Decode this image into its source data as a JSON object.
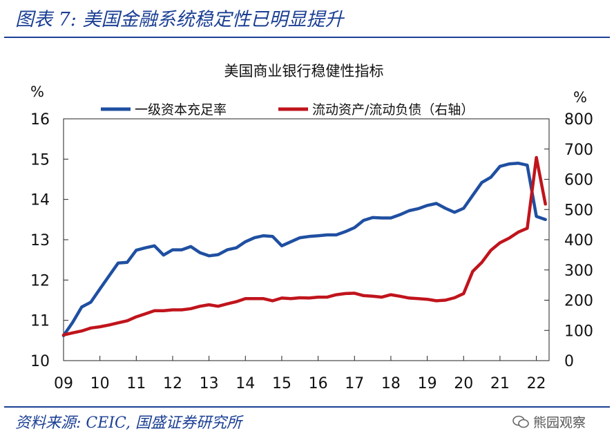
{
  "figure_title": "图表 7:  美国金融系统稳定性已明显提升",
  "source_text": "资料来源:  CEIC,  国盛证券研究所",
  "watermark_text": "熊园观察",
  "colors": {
    "accent": "#1b3f94",
    "series_blue": "#1f4fa1",
    "series_red": "#c0141c"
  },
  "chart_data": {
    "type": "line",
    "title": "美国商业银行稳健性指标",
    "y_left_unit": "%",
    "y_right_unit": "%",
    "ylim_left": [
      10,
      16
    ],
    "ylim_right": [
      0,
      800
    ],
    "xlim": [
      2009,
      2022.35
    ],
    "yticks_left": [
      10,
      11,
      12,
      13,
      14,
      15,
      16
    ],
    "yticks_right": [
      0,
      100,
      200,
      300,
      400,
      500,
      600,
      700,
      800
    ],
    "xticks": [
      {
        "label": "09",
        "value": 2009
      },
      {
        "label": "10",
        "value": 2010
      },
      {
        "label": "11",
        "value": 2011
      },
      {
        "label": "12",
        "value": 2012
      },
      {
        "label": "13",
        "value": 2013
      },
      {
        "label": "14",
        "value": 2014
      },
      {
        "label": "15",
        "value": 2015
      },
      {
        "label": "16",
        "value": 2016
      },
      {
        "label": "17",
        "value": 2017
      },
      {
        "label": "18",
        "value": 2018
      },
      {
        "label": "19",
        "value": 2019
      },
      {
        "label": "20",
        "value": 2020
      },
      {
        "label": "21",
        "value": 2021
      },
      {
        "label": "22",
        "value": 2022
      }
    ],
    "legend_position": "top",
    "grid": false,
    "series": [
      {
        "name": "一级资本充足率",
        "axis": "left",
        "color": "#1f4fa1",
        "x": [
          2009.0,
          2009.25,
          2009.5,
          2009.75,
          2010.0,
          2010.25,
          2010.5,
          2010.75,
          2011.0,
          2011.25,
          2011.5,
          2011.75,
          2012.0,
          2012.25,
          2012.5,
          2012.75,
          2013.0,
          2013.25,
          2013.5,
          2013.75,
          2014.0,
          2014.25,
          2014.5,
          2014.75,
          2015.0,
          2015.25,
          2015.5,
          2015.75,
          2016.0,
          2016.25,
          2016.5,
          2016.75,
          2017.0,
          2017.25,
          2017.5,
          2017.75,
          2018.0,
          2018.25,
          2018.5,
          2018.75,
          2019.0,
          2019.25,
          2019.5,
          2019.75,
          2020.0,
          2020.25,
          2020.5,
          2020.75,
          2021.0,
          2021.25,
          2021.5,
          2021.75,
          2022.0,
          2022.25
        ],
        "values": [
          10.62,
          10.95,
          11.33,
          11.45,
          11.78,
          12.1,
          12.42,
          12.44,
          12.74,
          12.8,
          12.85,
          12.62,
          12.75,
          12.75,
          12.83,
          12.68,
          12.6,
          12.63,
          12.75,
          12.8,
          12.95,
          13.05,
          13.1,
          13.08,
          12.85,
          12.95,
          13.05,
          13.08,
          13.1,
          13.12,
          13.12,
          13.2,
          13.3,
          13.48,
          13.55,
          13.54,
          13.54,
          13.62,
          13.72,
          13.77,
          13.85,
          13.9,
          13.78,
          13.68,
          13.78,
          14.1,
          14.42,
          14.55,
          14.82,
          14.88,
          14.9,
          14.85,
          13.58,
          13.5
        ]
      },
      {
        "name": "流动资产/流动负债（右轴）",
        "axis": "right",
        "color": "#c0141c",
        "x": [
          2009.0,
          2009.25,
          2009.5,
          2009.75,
          2010.0,
          2010.25,
          2010.5,
          2010.75,
          2011.0,
          2011.25,
          2011.5,
          2011.75,
          2012.0,
          2012.25,
          2012.5,
          2012.75,
          2013.0,
          2013.25,
          2013.5,
          2013.75,
          2014.0,
          2014.25,
          2014.5,
          2014.75,
          2015.0,
          2015.25,
          2015.5,
          2015.75,
          2016.0,
          2016.25,
          2016.5,
          2016.75,
          2017.0,
          2017.25,
          2017.5,
          2017.75,
          2018.0,
          2018.25,
          2018.5,
          2018.75,
          2019.0,
          2019.25,
          2019.5,
          2019.75,
          2020.0,
          2020.25,
          2020.5,
          2020.75,
          2021.0,
          2021.25,
          2021.5,
          2021.75,
          2022.0,
          2022.25
        ],
        "values": [
          85,
          92,
          98,
          108,
          112,
          118,
          125,
          132,
          145,
          155,
          165,
          165,
          168,
          168,
          172,
          180,
          185,
          180,
          188,
          195,
          205,
          205,
          205,
          198,
          207,
          205,
          208,
          207,
          210,
          210,
          218,
          222,
          223,
          215,
          213,
          210,
          218,
          213,
          207,
          205,
          203,
          198,
          200,
          208,
          222,
          295,
          325,
          365,
          390,
          405,
          425,
          438,
          672,
          518
        ]
      }
    ]
  }
}
